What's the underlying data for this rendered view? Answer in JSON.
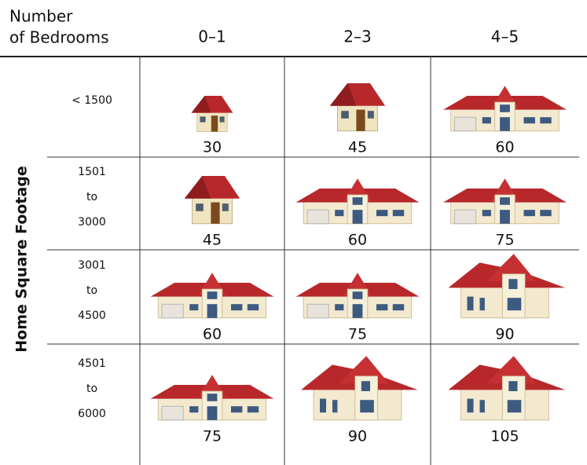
{
  "header": {
    "corner": [
      "Number",
      "of Bedrooms"
    ],
    "columns": [
      "0–1",
      "2–3",
      "4–5"
    ]
  },
  "row_axis_label": "Home Square Footage",
  "rows": [
    {
      "label": [
        "< 1500"
      ],
      "values": [
        30,
        45,
        60
      ]
    },
    {
      "label": [
        "1501",
        "to",
        "3000"
      ],
      "values": [
        45,
        60,
        75
      ]
    },
    {
      "label": [
        "3001",
        "to",
        "4500"
      ],
      "values": [
        60,
        75,
        90
      ]
    },
    {
      "label": [
        "4501",
        "to",
        "6000"
      ],
      "values": [
        75,
        90,
        105
      ]
    }
  ]
}
